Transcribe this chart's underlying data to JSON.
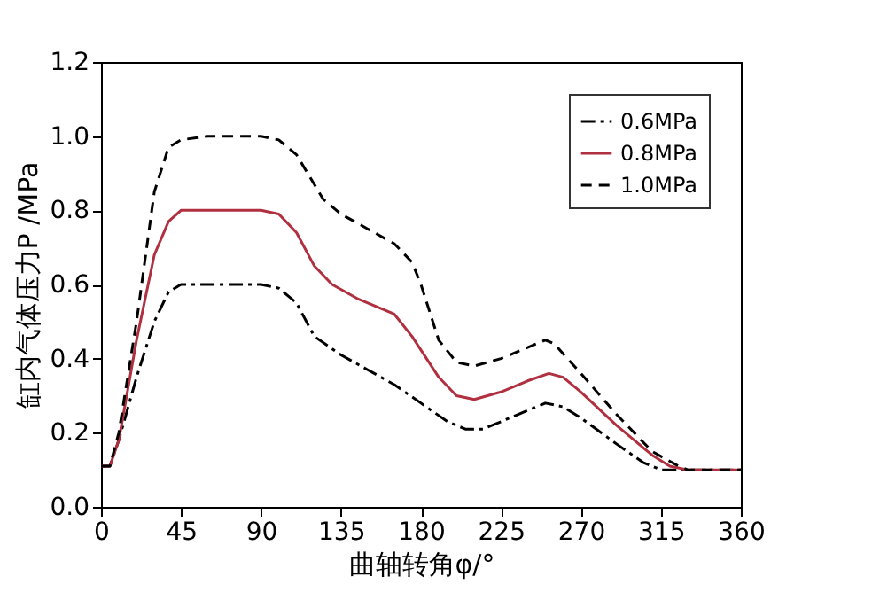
{
  "chart_data": {
    "type": "line",
    "xlabel": "曲轴转角φ/°",
    "ylabel": "缸内气体压力P /MPa",
    "xlim": [
      0,
      360
    ],
    "xticks": [
      0,
      45,
      90,
      135,
      180,
      225,
      270,
      315,
      360
    ],
    "ylim": [
      0,
      1.2
    ],
    "yticks": [
      {
        "value": 0,
        "label": "0.0"
      },
      0.2,
      0.4,
      0.6,
      0.8,
      {
        "value": 1,
        "label": "1.0"
      },
      1.2
    ],
    "grid": false,
    "legend": "top right",
    "marker": "none",
    "series": [
      {
        "name": "0.6MPa",
        "color": "#000000",
        "line_style": "dashdot",
        "x": [
          0,
          5,
          10,
          20,
          30,
          38,
          45,
          60,
          90,
          100,
          110,
          120,
          135,
          150,
          165,
          180,
          195,
          205,
          215,
          230,
          250,
          260,
          270,
          290,
          305,
          315,
          330,
          360
        ],
        "values": [
          0.11,
          0.11,
          0.18,
          0.35,
          0.5,
          0.58,
          0.6,
          0.6,
          0.6,
          0.59,
          0.55,
          0.46,
          0.41,
          0.37,
          0.33,
          0.28,
          0.23,
          0.21,
          0.21,
          0.24,
          0.28,
          0.27,
          0.24,
          0.17,
          0.12,
          0.1,
          0.1,
          0.1
        ]
      },
      {
        "name": "0.8MPa",
        "color": "#b03040",
        "line_style": "solid",
        "x": [
          0,
          5,
          10,
          20,
          30,
          38,
          45,
          60,
          90,
          100,
          110,
          120,
          130,
          145,
          165,
          175,
          190,
          200,
          210,
          225,
          240,
          252,
          260,
          270,
          290,
          310,
          320,
          330,
          360
        ],
        "values": [
          0.11,
          0.11,
          0.18,
          0.45,
          0.68,
          0.77,
          0.8,
          0.8,
          0.8,
          0.79,
          0.74,
          0.65,
          0.6,
          0.56,
          0.52,
          0.46,
          0.35,
          0.3,
          0.29,
          0.31,
          0.34,
          0.36,
          0.35,
          0.31,
          0.22,
          0.14,
          0.11,
          0.1,
          0.1
        ]
      },
      {
        "name": "1.0MPa",
        "color": "#000000",
        "line_style": "dashed",
        "x": [
          0,
          5,
          10,
          20,
          30,
          38,
          45,
          60,
          90,
          100,
          110,
          125,
          135,
          150,
          165,
          175,
          180,
          190,
          200,
          210,
          225,
          240,
          250,
          255,
          270,
          290,
          310,
          325,
          330,
          360
        ],
        "values": [
          0.11,
          0.11,
          0.2,
          0.5,
          0.85,
          0.97,
          0.99,
          1.0,
          1.0,
          0.99,
          0.95,
          0.83,
          0.79,
          0.75,
          0.71,
          0.66,
          0.6,
          0.45,
          0.39,
          0.38,
          0.4,
          0.43,
          0.45,
          0.44,
          0.36,
          0.25,
          0.15,
          0.11,
          0.1,
          0.1
        ]
      }
    ]
  }
}
